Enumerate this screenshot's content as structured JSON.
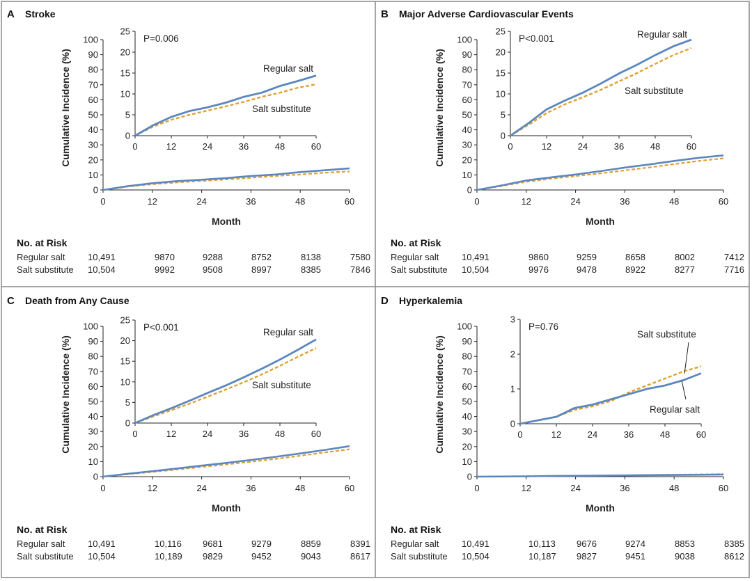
{
  "chart_data": [
    {
      "panel": "A",
      "title": "Stroke",
      "type": "line",
      "xlabel": "Month",
      "ylabel": "Cumulative Incidence (%)",
      "xticks": [
        0,
        12,
        24,
        36,
        48,
        60
      ],
      "main_ylim": [
        0,
        100
      ],
      "main_yticks": [
        0,
        10,
        20,
        30,
        40,
        50,
        60,
        70,
        80,
        90,
        100
      ],
      "inset": {
        "ylim": [
          0,
          25
        ],
        "yticks": [
          0,
          5,
          10,
          15,
          20,
          25
        ],
        "pvalue": "P=0.006",
        "labels": [
          "Regular salt",
          "Salt substitute"
        ]
      },
      "series": [
        {
          "name": "Regular salt",
          "color": "#5b87c0",
          "style": "solid",
          "x": [
            0,
            6,
            12,
            18,
            24,
            30,
            36,
            42,
            48,
            54,
            60
          ],
          "values": [
            0,
            2.5,
            4.5,
            5.9,
            6.8,
            7.9,
            9.3,
            10.3,
            11.9,
            13.1,
            14.4
          ]
        },
        {
          "name": "Salt substitute",
          "color": "#e0a030",
          "style": "dashed",
          "x": [
            0,
            6,
            12,
            18,
            24,
            30,
            36,
            42,
            48,
            54,
            60
          ],
          "values": [
            0,
            2.2,
            3.8,
            5.0,
            6.0,
            7.0,
            8.1,
            9.3,
            10.3,
            11.5,
            12.3
          ]
        }
      ],
      "risk_table": {
        "heading": "No. at Risk",
        "rows": [
          {
            "label": "Regular salt",
            "values": [
              "10,491",
              "9870",
              "9288",
              "8752",
              "8138",
              "7580"
            ]
          },
          {
            "label": "Salt substitute",
            "values": [
              "10,504",
              "9992",
              "9508",
              "8997",
              "8385",
              "7846"
            ]
          }
        ]
      }
    },
    {
      "panel": "B",
      "title": "Major Adverse Cardiovascular Events",
      "type": "line",
      "xlabel": "Month",
      "ylabel": "Cumulative Incidence (%)",
      "xticks": [
        0,
        12,
        24,
        36,
        48,
        60
      ],
      "main_ylim": [
        0,
        100
      ],
      "main_yticks": [
        0,
        10,
        20,
        30,
        40,
        50,
        60,
        70,
        80,
        90,
        100
      ],
      "inset": {
        "ylim": [
          0,
          25
        ],
        "yticks": [
          0,
          5,
          10,
          15,
          20,
          25
        ],
        "pvalue": "P<0.001",
        "labels": [
          "Regular salt",
          "Salt substitute"
        ]
      },
      "series": [
        {
          "name": "Regular salt",
          "color": "#5b87c0",
          "style": "solid",
          "x": [
            0,
            6,
            12,
            18,
            24,
            30,
            36,
            42,
            48,
            54,
            60
          ],
          "values": [
            0,
            3.0,
            6.3,
            8.4,
            10.3,
            12.5,
            14.9,
            17.0,
            19.3,
            21.4,
            23.0
          ]
        },
        {
          "name": "Salt substitute",
          "color": "#e0a030",
          "style": "dashed",
          "x": [
            0,
            6,
            12,
            18,
            24,
            30,
            36,
            42,
            48,
            54,
            60
          ],
          "values": [
            0,
            2.6,
            5.4,
            7.5,
            9.2,
            11.0,
            13.0,
            15.0,
            17.2,
            19.3,
            21.0
          ]
        }
      ],
      "risk_table": {
        "heading": "No. at Risk",
        "rows": [
          {
            "label": "Regular salt",
            "values": [
              "10,491",
              "9860",
              "9259",
              "8658",
              "8002",
              "7412"
            ]
          },
          {
            "label": "Salt substitute",
            "values": [
              "10,504",
              "9976",
              "9478",
              "8922",
              "8277",
              "7716"
            ]
          }
        ]
      }
    },
    {
      "panel": "C",
      "title": "Death from Any Cause",
      "type": "line",
      "xlabel": "Month",
      "ylabel": "Cumulative Incidence (%)",
      "xticks": [
        0,
        12,
        24,
        36,
        48,
        60
      ],
      "main_ylim": [
        0,
        100
      ],
      "main_yticks": [
        0,
        10,
        20,
        30,
        40,
        50,
        60,
        70,
        80,
        90,
        100
      ],
      "inset": {
        "ylim": [
          0,
          25
        ],
        "yticks": [
          0,
          5,
          10,
          15,
          20,
          25
        ],
        "pvalue": "P<0.001",
        "labels": [
          "Regular salt",
          "Salt substitute"
        ]
      },
      "series": [
        {
          "name": "Regular salt",
          "color": "#5b87c0",
          "style": "solid",
          "x": [
            0,
            6,
            12,
            18,
            24,
            30,
            36,
            42,
            48,
            54,
            60
          ],
          "values": [
            0,
            1.9,
            3.6,
            5.4,
            7.3,
            9.1,
            11.1,
            13.2,
            15.4,
            17.8,
            20.3
          ]
        },
        {
          "name": "Salt substitute",
          "color": "#e0a030",
          "style": "dashed",
          "x": [
            0,
            6,
            12,
            18,
            24,
            30,
            36,
            42,
            48,
            54,
            60
          ],
          "values": [
            0,
            1.6,
            3.1,
            4.7,
            6.4,
            8.1,
            9.9,
            11.8,
            13.9,
            16.1,
            18.2
          ]
        }
      ],
      "risk_table": {
        "heading": "No. at Risk",
        "rows": [
          {
            "label": "Regular salt",
            "values": [
              "10,491",
              "10,116",
              "9681",
              "9279",
              "8859",
              "8391"
            ]
          },
          {
            "label": "Salt substitute",
            "values": [
              "10,504",
              "10,189",
              "9829",
              "9452",
              "9043",
              "8617"
            ]
          }
        ]
      }
    },
    {
      "panel": "D",
      "title": "Hyperkalemia",
      "type": "line",
      "xlabel": "Month",
      "ylabel": "Cumulative Incidence (%)",
      "xticks": [
        0,
        12,
        24,
        36,
        48,
        60
      ],
      "main_ylim": [
        0,
        100
      ],
      "main_yticks": [
        0,
        10,
        20,
        30,
        40,
        50,
        60,
        70,
        80,
        90,
        100
      ],
      "inset": {
        "ylim": [
          0,
          3
        ],
        "yticks": [
          0,
          1,
          2,
          3
        ],
        "pvalue": "P=0.76",
        "labels": [
          "Salt substitute",
          "Regular salt"
        ]
      },
      "series": [
        {
          "name": "Regular salt",
          "color": "#5b87c0",
          "style": "solid",
          "x": [
            0,
            6,
            12,
            18,
            24,
            30,
            36,
            42,
            48,
            54,
            60
          ],
          "values": [
            0,
            0.1,
            0.2,
            0.45,
            0.55,
            0.7,
            0.85,
            1.0,
            1.1,
            1.25,
            1.45
          ]
        },
        {
          "name": "Salt substitute",
          "color": "#e0a030",
          "style": "dashed",
          "x": [
            0,
            6,
            12,
            18,
            24,
            30,
            36,
            42,
            48,
            54,
            60
          ],
          "values": [
            0,
            0.1,
            0.2,
            0.4,
            0.5,
            0.65,
            0.9,
            1.1,
            1.3,
            1.5,
            1.65
          ]
        }
      ],
      "risk_table": {
        "heading": "No. at Risk",
        "rows": [
          {
            "label": "Regular salt",
            "values": [
              "10,491",
              "10,113",
              "9676",
              "9274",
              "8853",
              "8385"
            ]
          },
          {
            "label": "Salt substitute",
            "values": [
              "10,504",
              "10,187",
              "9827",
              "9451",
              "9038",
              "8612"
            ]
          }
        ]
      }
    }
  ]
}
